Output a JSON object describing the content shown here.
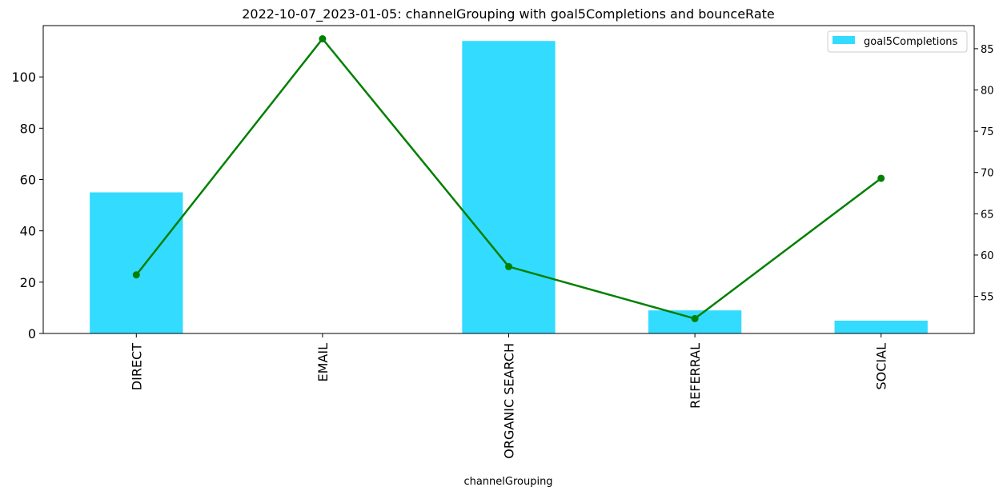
{
  "chart_data": {
    "type": "bar",
    "title": "2022-10-07_2023-01-05: channelGrouping with goal5Completions and bounceRate",
    "xlabel": "channelGrouping",
    "ylabel": "",
    "categories": [
      "DIRECT",
      "EMAIL",
      "ORGANIC SEARCH",
      "REFERRAL",
      "SOCIAL"
    ],
    "series": [
      {
        "name": "goal5Completions",
        "type": "bar",
        "axis": "left",
        "color": "#33dbff",
        "values": [
          55,
          0,
          114,
          9,
          5
        ]
      },
      {
        "type": "line",
        "axis": "right",
        "color": "#008000",
        "marker": "circle",
        "values": [
          57.6,
          86.2,
          58.6,
          52.3,
          69.3
        ]
      }
    ],
    "ylim": [
      0,
      120
    ],
    "ylim_right": [
      50.5,
      87.8
    ],
    "yticks_left": [
      0,
      20,
      40,
      60,
      80,
      100
    ],
    "yticks_right": [
      55,
      60,
      65,
      70,
      75,
      80,
      85
    ],
    "legend_position": "top-right",
    "grid": false
  }
}
